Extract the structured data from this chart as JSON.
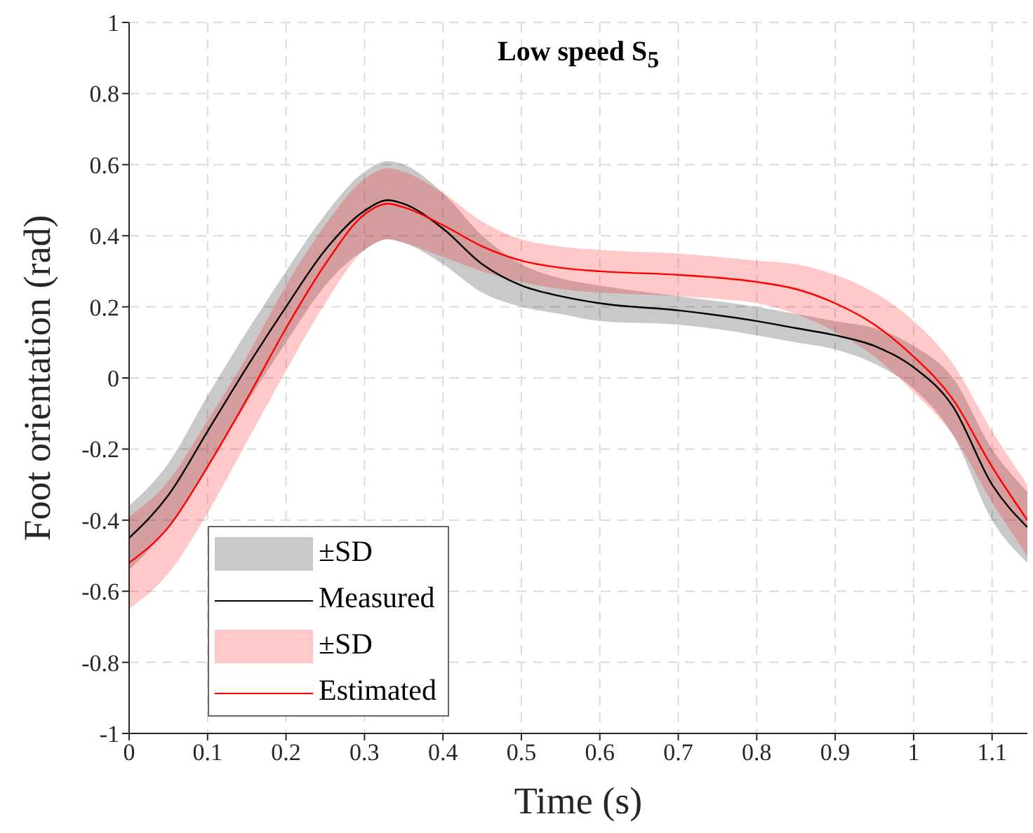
{
  "chart_data": {
    "type": "line",
    "title": "Low speed S$_{5}$",
    "xlabel": "Time (s)",
    "ylabel": "Foot orientation (rad)",
    "x": [
      0,
      0.05,
      0.1,
      0.15,
      0.2,
      0.25,
      0.3,
      0.33,
      0.35,
      0.4,
      0.45,
      0.5,
      0.55,
      0.6,
      0.7,
      0.8,
      0.85,
      0.9,
      0.95,
      1.0,
      1.05,
      1.1,
      1.145
    ],
    "series": [
      {
        "name": "Measured",
        "color": "#000000",
        "values": [
          -0.45,
          -0.33,
          -0.15,
          0.03,
          0.2,
          0.36,
          0.47,
          0.5,
          0.49,
          0.42,
          0.32,
          0.26,
          0.23,
          0.21,
          0.19,
          0.16,
          0.14,
          0.12,
          0.09,
          0.03,
          -0.08,
          -0.3,
          -0.42
        ],
        "lower": [
          -0.54,
          -0.42,
          -0.25,
          -0.07,
          0.1,
          0.26,
          0.36,
          0.39,
          0.38,
          0.32,
          0.24,
          0.2,
          0.18,
          0.16,
          0.15,
          0.12,
          0.1,
          0.08,
          0.04,
          -0.03,
          -0.16,
          -0.4,
          -0.52
        ],
        "upper": [
          -0.36,
          -0.24,
          -0.05,
          0.13,
          0.3,
          0.46,
          0.58,
          0.61,
          0.6,
          0.52,
          0.4,
          0.32,
          0.28,
          0.26,
          0.23,
          0.2,
          0.18,
          0.16,
          0.14,
          0.09,
          0.0,
          -0.2,
          -0.32
        ]
      },
      {
        "name": "Estimated",
        "color": "#ff0000",
        "values": [
          -0.52,
          -0.42,
          -0.25,
          -0.06,
          0.14,
          0.32,
          0.46,
          0.49,
          0.48,
          0.43,
          0.37,
          0.33,
          0.31,
          0.3,
          0.29,
          0.27,
          0.25,
          0.21,
          0.15,
          0.06,
          -0.06,
          -0.25,
          -0.4
        ],
        "lower": [
          -0.65,
          -0.55,
          -0.38,
          -0.18,
          0.02,
          0.21,
          0.36,
          0.39,
          0.38,
          0.34,
          0.3,
          0.27,
          0.25,
          0.24,
          0.23,
          0.21,
          0.18,
          0.13,
          0.06,
          -0.04,
          -0.16,
          -0.35,
          -0.5
        ],
        "upper": [
          -0.39,
          -0.29,
          -0.12,
          0.06,
          0.26,
          0.43,
          0.56,
          0.59,
          0.58,
          0.52,
          0.44,
          0.39,
          0.37,
          0.36,
          0.35,
          0.33,
          0.32,
          0.29,
          0.24,
          0.16,
          0.04,
          -0.15,
          -0.3
        ]
      }
    ],
    "annotations": [
      "±SD",
      "±SD"
    ],
    "xlim": [
      0,
      1.145
    ],
    "xticks": [
      0,
      0.1,
      0.2,
      0.3,
      0.4,
      0.5,
      0.6,
      0.7,
      0.8,
      0.9,
      1,
      1.1
    ],
    "ylim": [
      -1,
      1
    ],
    "yticks": [
      -1,
      -0.8,
      -0.6,
      -0.4,
      -0.2,
      0,
      0.2,
      0.4,
      0.6,
      0.8,
      1
    ],
    "grid": true,
    "legend": "bottom left",
    "line_style": "solid",
    "marker": "none"
  }
}
